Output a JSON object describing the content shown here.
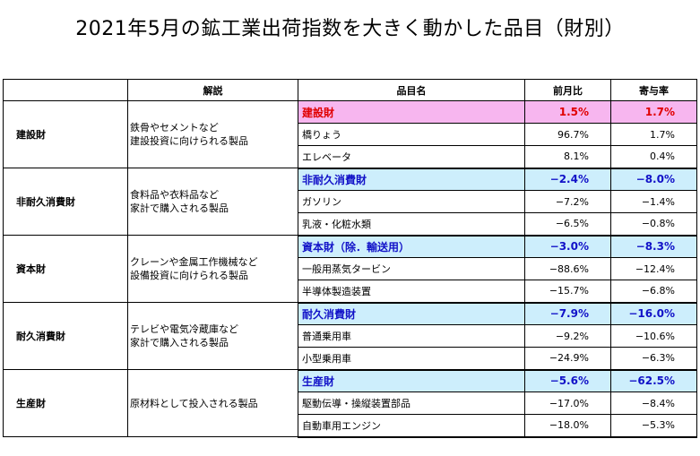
{
  "title": "2021年5月の鉱工業出荷指数を大きく動かした品目（財別）",
  "headers": {
    "blank": "",
    "description": "解説",
    "item": "品目名",
    "mom": "前月比",
    "contribution": "寄与率"
  },
  "groups": [
    {
      "name": "建設財",
      "description": [
        "鉄骨やセメントなど",
        "建設投資に向けられる製品"
      ],
      "style": "pink",
      "rows": [
        {
          "item": "建設財",
          "mom": "1.5%",
          "contribution": "1.7%"
        },
        {
          "item": "橋りょう",
          "mom": "96.7%",
          "contribution": "1.7%"
        },
        {
          "item": "エレベータ",
          "mom": "8.1%",
          "contribution": "0.4%"
        }
      ]
    },
    {
      "name": "非耐久消費財",
      "description": [
        "食料品や衣料品など",
        "家計で購入される製品"
      ],
      "style": "blue",
      "rows": [
        {
          "item": "非耐久消費財",
          "mom": "−2.4%",
          "contribution": "−8.0%"
        },
        {
          "item": "ガソリン",
          "mom": "−7.2%",
          "contribution": "−1.4%"
        },
        {
          "item": "乳液・化粧水類",
          "mom": "−6.5%",
          "contribution": "−0.8%"
        }
      ]
    },
    {
      "name": "資本財",
      "description": [
        "クレーンや金属工作機械など",
        "設備投資に向けられる製品"
      ],
      "style": "blue",
      "rows": [
        {
          "item": "資本財（除．輸送用）",
          "mom": "−3.0%",
          "contribution": "−8.3%"
        },
        {
          "item": "一般用蒸気タービン",
          "mom": "−88.6%",
          "contribution": "−12.4%"
        },
        {
          "item": "半導体製造装置",
          "mom": "−15.7%",
          "contribution": "−6.8%"
        }
      ]
    },
    {
      "name": "耐久消費財",
      "description": [
        "テレビや電気冷蔵庫など",
        "家計で購入される製品"
      ],
      "style": "blue",
      "rows": [
        {
          "item": "耐久消費財",
          "mom": "−7.9%",
          "contribution": "−16.0%"
        },
        {
          "item": "普通乗用車",
          "mom": "−9.2%",
          "contribution": "−10.6%"
        },
        {
          "item": "小型乗用車",
          "mom": "−24.9%",
          "contribution": "−6.3%"
        }
      ]
    },
    {
      "name": "生産財",
      "description": [
        "原材料として投入される製品"
      ],
      "style": "blue",
      "rows": [
        {
          "item": "生産財",
          "mom": "−5.6%",
          "contribution": "−62.5%"
        },
        {
          "item": "駆動伝導・操縦装置部品",
          "mom": "−17.0%",
          "contribution": "−8.4%"
        },
        {
          "item": "自動車用エンジン",
          "mom": "−18.0%",
          "contribution": "−5.3%"
        }
      ]
    }
  ]
}
